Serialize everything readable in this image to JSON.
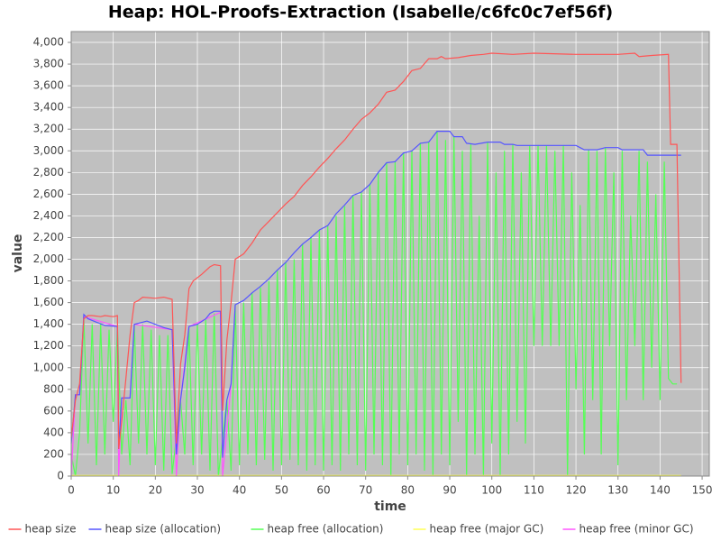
{
  "chart_data": {
    "type": "line",
    "title": "Heap: HOL-Proofs-Extraction (Isabelle/c6fc0c7ef56f)",
    "x_label": "time",
    "y_label": "value",
    "xlim": [
      0,
      151.7
    ],
    "ylim": [
      0,
      4100
    ],
    "xticks": [
      0,
      10,
      20,
      30,
      40,
      50,
      60,
      70,
      80,
      90,
      100,
      110,
      120,
      130,
      140,
      150
    ],
    "yticks": [
      0,
      200,
      400,
      600,
      800,
      {
        "value": 1000,
        "label": "1,000"
      },
      {
        "value": 1200,
        "label": "1,200"
      },
      {
        "value": 1400,
        "label": "1,400"
      },
      {
        "value": 1600,
        "label": "1,600"
      },
      {
        "value": 1800,
        "label": "1,800"
      },
      {
        "value": 2000,
        "label": "2,000"
      },
      {
        "value": 2200,
        "label": "2,200"
      },
      {
        "value": 2400,
        "label": "2,400"
      },
      {
        "value": 2600,
        "label": "2,600"
      },
      {
        "value": 2800,
        "label": "2,800"
      },
      {
        "value": 3000,
        "label": "3,000"
      },
      {
        "value": 3200,
        "label": "3,200"
      },
      {
        "value": 3400,
        "label": "3,400"
      },
      {
        "value": 3600,
        "label": "3,600"
      },
      {
        "value": 3800,
        "label": "3,800"
      },
      {
        "value": 4000,
        "label": "4,000"
      }
    ],
    "grid": true,
    "legend": "bottom",
    "series": [
      {
        "name": "heap size",
        "color": "#ff5555",
        "x": [
          0,
          1,
          2,
          3,
          4,
          5,
          7,
          8,
          10,
          11,
          11.3,
          12,
          13,
          14,
          15,
          16,
          17,
          20,
          22,
          24,
          25,
          26,
          27,
          28,
          29,
          31,
          33,
          34,
          35.5,
          36,
          37,
          38,
          39,
          41,
          43,
          45,
          47,
          49,
          51,
          53,
          55,
          57,
          59,
          61,
          63,
          65,
          67,
          69,
          71,
          73,
          75,
          77,
          79,
          81,
          83,
          85,
          87,
          88,
          89,
          92,
          95,
          98,
          100,
          105,
          110,
          120,
          130,
          134,
          135,
          138,
          142,
          142.5,
          144,
          145
        ],
        "values": [
          350,
          700,
          850,
          1450,
          1480,
          1480,
          1470,
          1480,
          1470,
          1480,
          250,
          500,
          900,
          1300,
          1600,
          1620,
          1650,
          1640,
          1650,
          1630,
          300,
          1030,
          1300,
          1730,
          1800,
          1860,
          1930,
          1950,
          1940,
          600,
          1250,
          1600,
          2000,
          2050,
          2150,
          2270,
          2350,
          2430,
          2510,
          2580,
          2680,
          2760,
          2850,
          2930,
          3020,
          3100,
          3200,
          3290,
          3350,
          3430,
          3540,
          3560,
          3640,
          3740,
          3760,
          3850,
          3850,
          3870,
          3850,
          3860,
          3880,
          3890,
          3900,
          3890,
          3900,
          3890,
          3890,
          3900,
          3870,
          3880,
          3890,
          3060,
          3060,
          860
        ]
      },
      {
        "name": "heap size (allocation)",
        "color": "#5555ff",
        "x": [
          0,
          1,
          2,
          3,
          4,
          6,
          8,
          11,
          11.3,
          12,
          14,
          15,
          17,
          18,
          20,
          22,
          24,
          25,
          26,
          27,
          28,
          30,
          32,
          33,
          34,
          35.5,
          36,
          37,
          38,
          39,
          41,
          43,
          45,
          47,
          49,
          51,
          53,
          55,
          57,
          59,
          61,
          63,
          65,
          67,
          69,
          71,
          73,
          75,
          77,
          79,
          81,
          83,
          85,
          87,
          90,
          91,
          93,
          94,
          96,
          99,
          102,
          103,
          105,
          106,
          110,
          120,
          122,
          125,
          127,
          130,
          131,
          136,
          137,
          140,
          145
        ],
        "values": [
          300,
          750,
          750,
          1490,
          1450,
          1420,
          1390,
          1380,
          250,
          720,
          720,
          1400,
          1420,
          1430,
          1400,
          1370,
          1350,
          200,
          700,
          1000,
          1380,
          1400,
          1450,
          1500,
          1520,
          1520,
          170,
          700,
          850,
          1580,
          1620,
          1690,
          1750,
          1820,
          1900,
          1970,
          2060,
          2140,
          2200,
          2270,
          2310,
          2420,
          2500,
          2590,
          2620,
          2690,
          2800,
          2890,
          2900,
          2980,
          3000,
          3070,
          3080,
          3180,
          3180,
          3130,
          3130,
          3070,
          3060,
          3080,
          3080,
          3060,
          3060,
          3050,
          3050,
          3050,
          3010,
          3010,
          3030,
          3030,
          3010,
          3010,
          2960,
          2960,
          2960
        ]
      },
      {
        "name": "heap free (allocation)",
        "color": "#55ff55",
        "x": [
          0,
          1,
          2,
          3,
          4,
          5,
          6,
          7,
          8,
          9,
          10,
          11,
          12,
          13,
          14,
          15,
          16,
          17,
          18,
          19,
          20,
          21,
          22,
          23,
          24,
          26,
          27,
          28,
          29,
          30,
          31,
          32,
          33,
          34,
          35,
          37,
          38,
          39,
          40,
          41,
          42,
          43,
          44,
          45,
          46,
          47,
          48,
          49,
          50,
          51,
          52,
          53,
          54,
          55,
          56,
          57,
          58,
          59,
          60,
          61,
          62,
          63,
          64,
          65,
          66,
          67,
          68,
          69,
          70,
          71,
          72,
          73,
          74,
          75,
          76,
          77,
          78,
          79,
          80,
          81,
          82,
          83,
          84,
          85,
          86,
          87,
          88,
          89,
          90,
          91,
          92,
          93,
          94,
          95,
          96,
          97,
          98,
          99,
          100,
          101,
          102,
          103,
          104,
          105,
          106,
          107,
          108,
          109,
          110,
          111,
          112,
          113,
          114,
          115,
          116,
          117,
          118,
          119,
          120,
          121,
          122,
          123,
          124,
          125,
          126,
          127,
          128,
          129,
          130,
          131,
          132,
          133,
          134,
          135,
          136,
          137,
          138,
          139,
          140,
          141,
          142,
          143,
          144
        ],
        "values": [
          200,
          0,
          400,
          1450,
          300,
          1400,
          100,
          1400,
          200,
          1350,
          500,
          1380,
          200,
          700,
          100,
          1400,
          300,
          1400,
          200,
          1350,
          100,
          1300,
          50,
          1300,
          20,
          700,
          200,
          1370,
          100,
          1400,
          200,
          1440,
          50,
          1500,
          0,
          700,
          50,
          1580,
          100,
          1600,
          200,
          1690,
          100,
          1740,
          150,
          1800,
          50,
          1900,
          100,
          1970,
          150,
          2000,
          100,
          2140,
          50,
          2200,
          100,
          2270,
          50,
          2310,
          100,
          2400,
          50,
          2490,
          200,
          2590,
          100,
          2620,
          50,
          2690,
          200,
          2800,
          100,
          2890,
          0,
          2900,
          200,
          2980,
          100,
          3000,
          200,
          3070,
          50,
          3080,
          0,
          3180,
          200,
          3100,
          100,
          3130,
          500,
          3000,
          0,
          3060,
          200,
          2400,
          0,
          3080,
          300,
          2800,
          0,
          3000,
          200,
          3060,
          500,
          2800,
          300,
          3050,
          1200,
          3050,
          1200,
          3050,
          1200,
          3000,
          1200,
          3050,
          0,
          2800,
          800,
          2500,
          200,
          3010,
          700,
          3000,
          200,
          3030,
          1200,
          2800,
          100,
          3000,
          700,
          2400,
          1200,
          3000,
          700,
          2900,
          1000,
          2600,
          700,
          2900,
          900,
          850,
          850
        ]
      },
      {
        "name": "heap free (major GC)",
        "color": "#ffff55",
        "x": [
          0,
          145
        ],
        "values": [
          5,
          5
        ]
      },
      {
        "name": "heap free (minor GC)",
        "color": "#ff55ff",
        "x": [
          0,
          1,
          2,
          3,
          11,
          11.3,
          12,
          14,
          15,
          24,
          25,
          26,
          28,
          35.5,
          36,
          38,
          39
        ],
        "values": [
          0,
          750,
          750,
          1470,
          1380,
          0,
          720,
          720,
          1400,
          1350,
          0,
          700,
          1380,
          1510,
          0,
          850,
          1580
        ]
      }
    ]
  }
}
